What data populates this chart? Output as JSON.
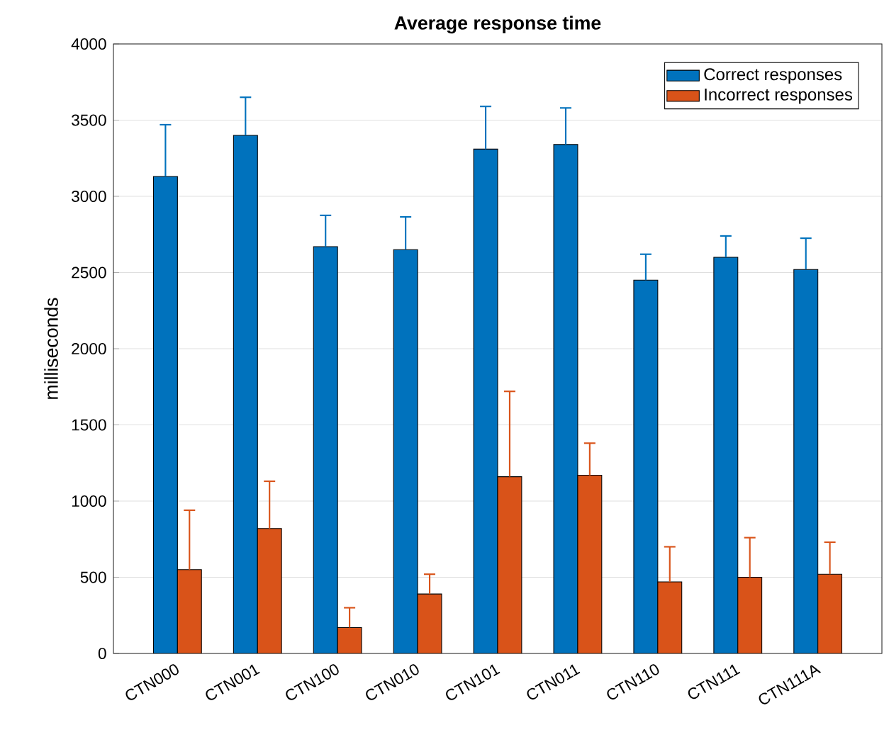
{
  "chart_data": {
    "type": "bar",
    "title": "Average response time",
    "ylabel": "milliseconds",
    "categories": [
      "CTN000",
      "CTN001",
      "CTN100",
      "CTN010",
      "CTN101",
      "CTN011",
      "CTN110",
      "CTN111",
      "CTN111A"
    ],
    "series": [
      {
        "name": "Correct responses",
        "color": "#0072bd",
        "values": [
          3130,
          3400,
          2670,
          2650,
          3310,
          3340,
          2450,
          2600,
          2520
        ],
        "errors": [
          [
            3130,
            3470
          ],
          [
            3400,
            3650
          ],
          [
            2670,
            2875
          ],
          [
            2650,
            2865
          ],
          [
            3310,
            3590
          ],
          [
            3340,
            3580
          ],
          [
            2450,
            2620
          ],
          [
            2600,
            2740
          ],
          [
            2520,
            2725
          ]
        ]
      },
      {
        "name": "Incorrect responses",
        "color": "#d95319",
        "values": [
          550,
          820,
          170,
          390,
          1160,
          1170,
          470,
          500,
          520
        ],
        "errors": [
          [
            550,
            940
          ],
          [
            820,
            1130
          ],
          [
            170,
            300
          ],
          [
            390,
            520
          ],
          [
            1160,
            1720
          ],
          [
            1170,
            1380
          ],
          [
            470,
            700
          ],
          [
            500,
            760
          ],
          [
            520,
            730
          ]
        ]
      }
    ],
    "ylim": [
      0,
      4000
    ],
    "yticks": [
      0,
      500,
      1000,
      1500,
      2000,
      2500,
      3000,
      3500,
      4000
    ],
    "grid": "y",
    "legend": "top right"
  }
}
